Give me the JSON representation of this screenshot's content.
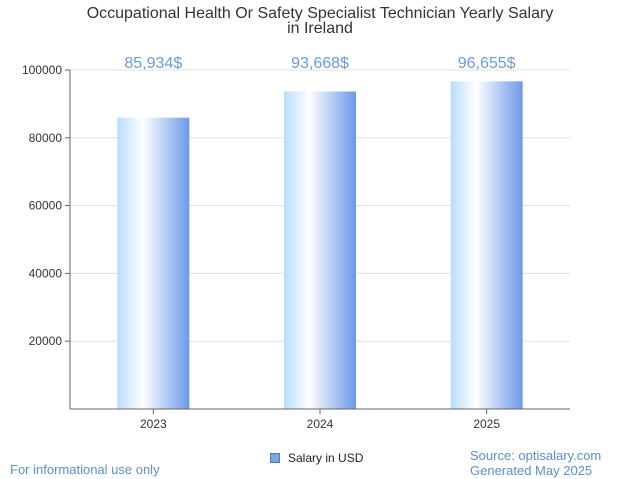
{
  "chart_data": {
    "type": "bar",
    "title_line1": "Occupational Health Or Safety Specialist Technician Yearly Salary",
    "title_line2": "in Ireland",
    "categories": [
      "2023",
      "2024",
      "2025"
    ],
    "series": [
      {
        "name": "Salary in USD",
        "values": [
          85934,
          93668,
          96655
        ]
      }
    ],
    "data_labels": [
      "85,934$",
      "93,668$",
      "96,655$"
    ],
    "ylim": [
      0,
      100000
    ],
    "yticks": [
      20000,
      40000,
      60000,
      80000,
      100000
    ],
    "ytick_labels": [
      "20000",
      "40000",
      "60000",
      "80000",
      "100000"
    ],
    "grid": true,
    "legend_position": "bottom"
  },
  "footer": {
    "left": "For informational use only",
    "source": "Source: optisalary.com",
    "generated": "Generated May 2025"
  },
  "colors": {
    "bar_light": "#ffffff",
    "bar_mid": "#b7dcff",
    "bar_dark": "#6c99e8",
    "label": "#6a9bdc",
    "axis": "#666666",
    "grid": "#e0e0e0"
  }
}
